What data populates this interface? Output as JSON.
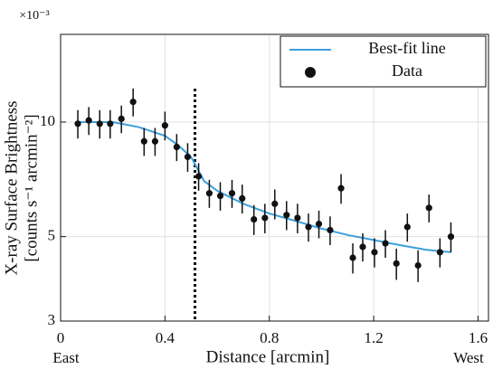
{
  "chart_data": {
    "type": "scatter",
    "multiplier": "×10⁻³",
    "xlabel": "Distance [arcmin]",
    "ylabel": [
      "X-ray Surface Brightness",
      "[counts s⁻¹ arcmin⁻²]"
    ],
    "x_end_labels": [
      "East",
      "West"
    ],
    "xlim": [
      0,
      1.64
    ],
    "xticks": [
      0,
      0.4,
      0.8,
      1.2,
      1.6
    ],
    "ylim": [
      3,
      17
    ],
    "yticks": [
      3,
      5,
      10
    ],
    "log_y": true,
    "grid": true,
    "legend": "upper right",
    "vline": 0.515,
    "series": [
      {
        "name": "Best-fit line",
        "color": "#3ca0dc",
        "kind": "line",
        "x": [
          0.066,
          0.2,
          0.3,
          0.4,
          0.45,
          0.5,
          0.55,
          0.6,
          0.7,
          0.8,
          0.9,
          1.0,
          1.1,
          1.2,
          1.3,
          1.4,
          1.496
        ],
        "values": [
          10,
          10,
          9.7,
          9.2,
          8.7,
          8.1,
          7.0,
          6.6,
          6.1,
          5.75,
          5.5,
          5.25,
          5.05,
          4.9,
          4.75,
          4.62,
          4.55
        ]
      },
      {
        "name": "Data",
        "color": "#111111",
        "kind": "points",
        "x": [
          0.066,
          0.108,
          0.15,
          0.19,
          0.233,
          0.278,
          0.32,
          0.362,
          0.4,
          0.445,
          0.487,
          0.529,
          0.57,
          0.612,
          0.657,
          0.696,
          0.741,
          0.783,
          0.821,
          0.866,
          0.908,
          0.95,
          0.99,
          1.033,
          1.075,
          1.12,
          1.158,
          1.203,
          1.245,
          1.287,
          1.329,
          1.37,
          1.412,
          1.454,
          1.496
        ],
        "values": [
          9.9,
          10.1,
          9.9,
          9.9,
          10.2,
          11.3,
          8.9,
          8.9,
          9.8,
          8.6,
          8.1,
          7.2,
          6.5,
          6.4,
          6.5,
          6.3,
          5.55,
          5.6,
          6.1,
          5.7,
          5.6,
          5.3,
          5.4,
          5.2,
          6.7,
          4.4,
          4.7,
          4.55,
          4.8,
          4.25,
          5.3,
          4.2,
          5.95,
          4.55,
          5.0
        ],
        "errors": [
          0.85,
          0.85,
          0.85,
          0.85,
          0.85,
          0.95,
          0.75,
          0.75,
          0.85,
          0.7,
          0.7,
          0.6,
          0.55,
          0.55,
          0.55,
          0.55,
          0.5,
          0.5,
          0.55,
          0.5,
          0.5,
          0.45,
          0.45,
          0.45,
          0.6,
          0.4,
          0.4,
          0.4,
          0.4,
          0.4,
          0.45,
          0.4,
          0.5,
          0.4,
          0.45
        ]
      }
    ]
  }
}
